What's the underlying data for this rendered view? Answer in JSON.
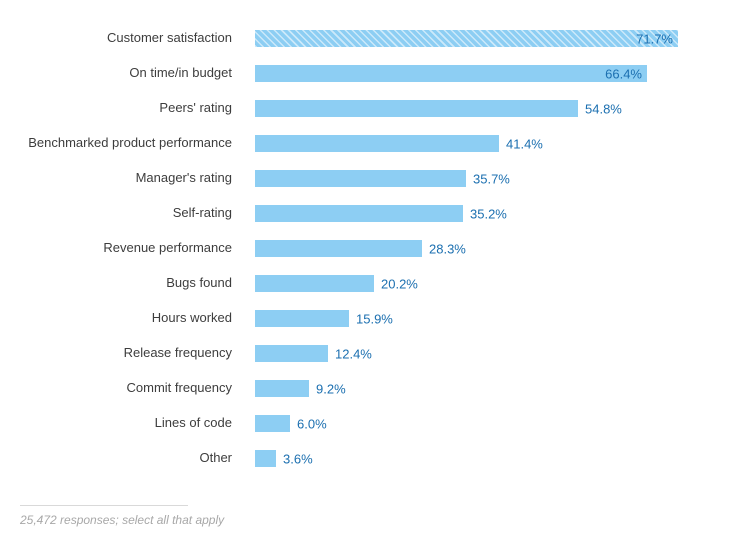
{
  "chart_data": {
    "type": "bar",
    "orientation": "horizontal",
    "title": "",
    "xlabel": "",
    "ylabel": "",
    "xlim": [
      0,
      73
    ],
    "grid": false,
    "legend": "none",
    "categories": [
      "Customer satisfaction",
      "On time/in budget",
      "Peers' rating",
      "Benchmarked product performance",
      "Manager's rating",
      "Self-rating",
      "Revenue performance",
      "Bugs found",
      "Hours worked",
      "Release frequency",
      "Commit frequency",
      "Lines of code",
      "Other"
    ],
    "values": [
      71.7,
      66.4,
      54.8,
      41.4,
      35.7,
      35.2,
      28.3,
      20.2,
      15.9,
      12.4,
      9.2,
      6.0,
      3.6
    ],
    "value_labels": [
      "71.7%",
      "66.4%",
      "54.8%",
      "41.4%",
      "35.7%",
      "35.2%",
      "28.3%",
      "20.2%",
      "15.9%",
      "12.4%",
      "9.2%",
      "6.0%",
      "3.6%"
    ],
    "bar_color": "#8dcef3",
    "value_label_color": "#1b6fb0",
    "category_label_color": "#3d3d3d",
    "highlighted_index": 0
  },
  "footer": {
    "note": "25,472 responses; select all that apply"
  }
}
